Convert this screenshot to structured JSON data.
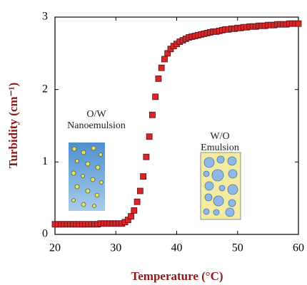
{
  "chart_data": {
    "type": "scatter",
    "x_label": "Temperature (°C)",
    "y_label": "Turbidity (cm⁻¹)",
    "annotations": [
      "O/W",
      "Nanoemulsion",
      "W/O",
      "Emulsion"
    ],
    "x": [
      20,
      20.5,
      21,
      21.5,
      22,
      22.5,
      23,
      23.5,
      24,
      24.5,
      25,
      25.5,
      26,
      26.5,
      27,
      27.5,
      28,
      28.5,
      29,
      29.5,
      30,
      30.5,
      31,
      31.5,
      32,
      32.5,
      33,
      33.5,
      34,
      34.5,
      35,
      35.5,
      36,
      36.5,
      37,
      37.5,
      38,
      38.5,
      39,
      39.5,
      40,
      40.5,
      41,
      41.5,
      42,
      42.5,
      43,
      43.5,
      44,
      44.5,
      45,
      45.5,
      46,
      46.5,
      47,
      47.5,
      48,
      48.5,
      49,
      49.5,
      50,
      50.5,
      51,
      51.5,
      52,
      52.5,
      53,
      53.5,
      54,
      54.5,
      55,
      55.5,
      56,
      56.5,
      57,
      57.5,
      58,
      58.5,
      59,
      59.5,
      60
    ],
    "series": [
      {
        "color": "#d9262a",
        "values": [
          0.14,
          0.14,
          0.14,
          0.14,
          0.14,
          0.14,
          0.14,
          0.14,
          0.14,
          0.14,
          0.14,
          0.14,
          0.14,
          0.14,
          0.14,
          0.15,
          0.15,
          0.15,
          0.15,
          0.15,
          0.15,
          0.15,
          0.15,
          0.17,
          0.2,
          0.25,
          0.33,
          0.45,
          0.6,
          0.8,
          1.07,
          1.35,
          1.65,
          1.9,
          2.15,
          2.3,
          2.42,
          2.5,
          2.56,
          2.6,
          2.63,
          2.66,
          2.68,
          2.7,
          2.72,
          2.73,
          2.74,
          2.75,
          2.76,
          2.77,
          2.78,
          2.79,
          2.8,
          2.8,
          2.81,
          2.82,
          2.83,
          2.83,
          2.84,
          2.84,
          2.85,
          2.85,
          2.86,
          2.86,
          2.87,
          2.87,
          2.87,
          2.88,
          2.88,
          2.88,
          2.89,
          2.89,
          2.89,
          2.9,
          2.9,
          2.9,
          2.9,
          2.91,
          2.91,
          2.91,
          2.91
        ]
      }
    ],
    "xlim": [
      20,
      60
    ],
    "xticks": [
      20,
      30,
      40,
      50,
      60
    ],
    "ylim": [
      0,
      3
    ],
    "yticks": [
      0,
      1,
      2,
      3
    ]
  }
}
